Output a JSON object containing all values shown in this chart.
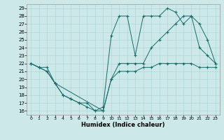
{
  "xlabel": "Humidex (Indice chaleur)",
  "background_color": "#cce8e8",
  "line_color": "#1a6b6b",
  "xlim": [
    -0.5,
    23.5
  ],
  "ylim": [
    15.5,
    29.5
  ],
  "yticks": [
    16,
    17,
    18,
    19,
    20,
    21,
    22,
    23,
    24,
    25,
    26,
    27,
    28,
    29
  ],
  "xticks": [
    0,
    1,
    2,
    3,
    4,
    5,
    6,
    7,
    8,
    9,
    10,
    11,
    12,
    13,
    14,
    15,
    16,
    17,
    18,
    19,
    20,
    21,
    22,
    23
  ],
  "line1_x": [
    0,
    1,
    2,
    3,
    4,
    5,
    6,
    7,
    8,
    9,
    10,
    11,
    12,
    13,
    14,
    15,
    16,
    17,
    18,
    19,
    20,
    21,
    22,
    23
  ],
  "line1_y": [
    22,
    21.5,
    21,
    19.5,
    18,
    17.5,
    17,
    16.5,
    16,
    16.5,
    25.5,
    28,
    28,
    23,
    28,
    28,
    28,
    29,
    28.5,
    27,
    28,
    24,
    23,
    22
  ],
  "line2_x": [
    0,
    1,
    2,
    3,
    9,
    10,
    11,
    12,
    13,
    14,
    15,
    16,
    17,
    18,
    19,
    20,
    21,
    22,
    23
  ],
  "line2_y": [
    22,
    21.5,
    21,
    19.5,
    16,
    20,
    22,
    22,
    22,
    22,
    24,
    25,
    26,
    27,
    28,
    28,
    27,
    25,
    22
  ],
  "line3_x": [
    0,
    1,
    2,
    3,
    4,
    5,
    6,
    7,
    8,
    9,
    10,
    11,
    12,
    13,
    14,
    15,
    16,
    17,
    18,
    19,
    20,
    21,
    22,
    23
  ],
  "line3_y": [
    22,
    21.5,
    21.5,
    19.5,
    18,
    17.5,
    17,
    17,
    16,
    16,
    20,
    21,
    21,
    21,
    21.5,
    21.5,
    22,
    22,
    22,
    22,
    22,
    21.5,
    21.5,
    21.5
  ]
}
